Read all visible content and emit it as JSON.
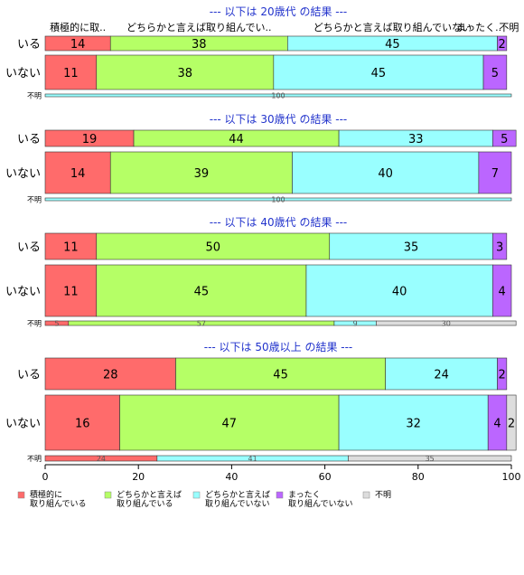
{
  "colors": {
    "title": "#2233cc",
    "categories": [
      "#ff6b6b",
      "#b5ff66",
      "#99ffff",
      "#bb66ff",
      "#dddddd"
    ],
    "stroke": "#333333"
  },
  "legend": {
    "items": [
      {
        "line1": "積極的に",
        "line2": "取り組んでいる"
      },
      {
        "line1": "どちらかと言えば",
        "line2": "取り組んでいる"
      },
      {
        "line1": "どちらかと言えば",
        "line2": "取り組んでいない"
      },
      {
        "line1": "まったく",
        "line2": "取り組んでいない"
      },
      {
        "line1": "不明",
        "line2": ""
      }
    ]
  },
  "chart_data": {
    "type": "bar",
    "orientation": "horizontal-stacked-percent",
    "xlim": [
      0,
      100
    ],
    "xticks": [
      0,
      20,
      40,
      60,
      80,
      100
    ],
    "categories": [
      "積極的に取り組んでいる",
      "どちらかと言えば取り組んでいる",
      "どちらかと言えば取り組んでいない",
      "まったく取り組んでいない",
      "不明"
    ],
    "top_labels": [
      "積極的に取..",
      "どちらかと言えば取り組んでい..",
      "どちらかと言えば取り組んでいない",
      "まったく..",
      "不明"
    ],
    "panels": [
      {
        "title": "--- 以下は 20歳代 の結果 ---",
        "rows": [
          {
            "label": "いる",
            "values": [
              14,
              38,
              45,
              2,
              0
            ],
            "labels": [
              "14",
              "38",
              "45",
              "2",
              ""
            ]
          },
          {
            "label": "いない",
            "values": [
              11,
              38,
              45,
              5,
              0
            ],
            "labels": [
              "11",
              "38",
              "45",
              "5",
              ""
            ]
          },
          {
            "label": "不明",
            "small": true,
            "values": [
              0,
              0,
              100,
              0,
              0
            ],
            "labels": [
              "",
              "",
              "100",
              "",
              ""
            ]
          }
        ]
      },
      {
        "title": "--- 以下は 30歳代 の結果 ---",
        "rows": [
          {
            "label": "いる",
            "values": [
              19,
              44,
              33,
              5,
              0
            ],
            "labels": [
              "19",
              "44",
              "33",
              "5",
              ""
            ]
          },
          {
            "label": "いない",
            "values": [
              14,
              39,
              40,
              7,
              0
            ],
            "labels": [
              "14",
              "39",
              "40",
              "7",
              ""
            ]
          },
          {
            "label": "不明",
            "small": true,
            "values": [
              0,
              0,
              100,
              0,
              0
            ],
            "labels": [
              "",
              "",
              "100",
              "",
              ""
            ]
          }
        ]
      },
      {
        "title": "--- 以下は 40歳代 の結果 ---",
        "rows": [
          {
            "label": "いる",
            "values": [
              11,
              50,
              35,
              3,
              0
            ],
            "labels": [
              "11",
              "50",
              "35",
              "3",
              ""
            ]
          },
          {
            "label": "いない",
            "values": [
              11,
              45,
              40,
              4,
              0
            ],
            "labels": [
              "11",
              "45",
              "40",
              "4",
              ""
            ]
          },
          {
            "label": "不明",
            "small": true,
            "values": [
              5,
              57,
              9,
              0,
              30
            ],
            "labels": [
              "5",
              "57",
              "9",
              "",
              "30"
            ]
          }
        ]
      },
      {
        "title": "--- 以下は 50歳以上 の結果 ---",
        "rows": [
          {
            "label": "いる",
            "values": [
              28,
              45,
              24,
              2,
              0
            ],
            "labels": [
              "28",
              "45",
              "24",
              "2",
              ""
            ]
          },
          {
            "label": "いない",
            "values": [
              16,
              47,
              32,
              4,
              2
            ],
            "labels": [
              "16",
              "47",
              "32",
              "4",
              "2"
            ]
          },
          {
            "label": "不明",
            "small": true,
            "values": [
              24,
              0,
              41,
              0,
              35
            ],
            "labels": [
              "24",
              "",
              "41",
              "",
              "35"
            ]
          }
        ]
      }
    ]
  }
}
